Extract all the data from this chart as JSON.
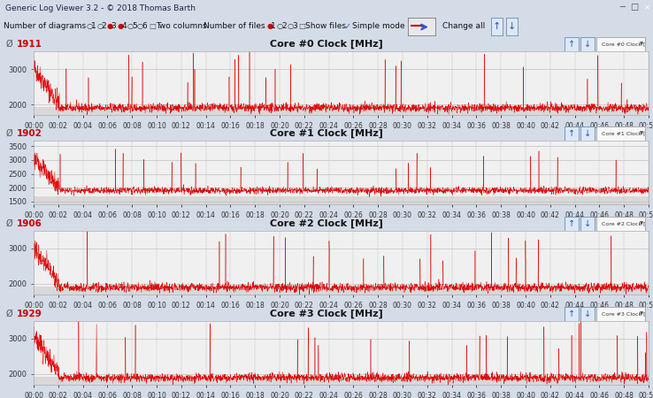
{
  "title": "Generic Log Viewer 3.2 - © 2018 Thomas Barth",
  "charts": [
    {
      "title": "Core #0 Clock [MHz]",
      "avg": "1911",
      "ymin": 1700,
      "ymax": 3500,
      "yticks": [
        2000,
        3000
      ],
      "label": "Core #0 Clock [MHz]"
    },
    {
      "title": "Core #1 Clock [MHz]",
      "avg": "1902",
      "ymin": 1400,
      "ymax": 3700,
      "yticks": [
        1500,
        2000,
        2500,
        3000,
        3500
      ],
      "label": "Core #1 Clock [MHz]"
    },
    {
      "title": "Core #2 Clock [MHz]",
      "avg": "1906",
      "ymin": 1700,
      "ymax": 3500,
      "yticks": [
        2000,
        3000
      ],
      "label": "Core #2 Clock [MHz]"
    },
    {
      "title": "Core #3 Clock [MHz]",
      "avg": "1929",
      "ymin": 1700,
      "ymax": 3500,
      "yticks": [
        2000,
        3000
      ],
      "label": "Core #3 Clock [MHz]"
    }
  ],
  "window_bg": "#d4dce8",
  "title_bar_bg": "#c8d4e4",
  "toolbar_bg": "#dce4f0",
  "chart_header_bg": "#e8ecf0",
  "plot_bg": "#f0f0f0",
  "plot_bg_lower": "#d8d8d8",
  "line_color": "#dd0000",
  "grid_color": "#c0c0c0",
  "x_max": 50,
  "x_tick_step": 2,
  "base_freq": 1900,
  "seeds": [
    42,
    123,
    77,
    200
  ]
}
